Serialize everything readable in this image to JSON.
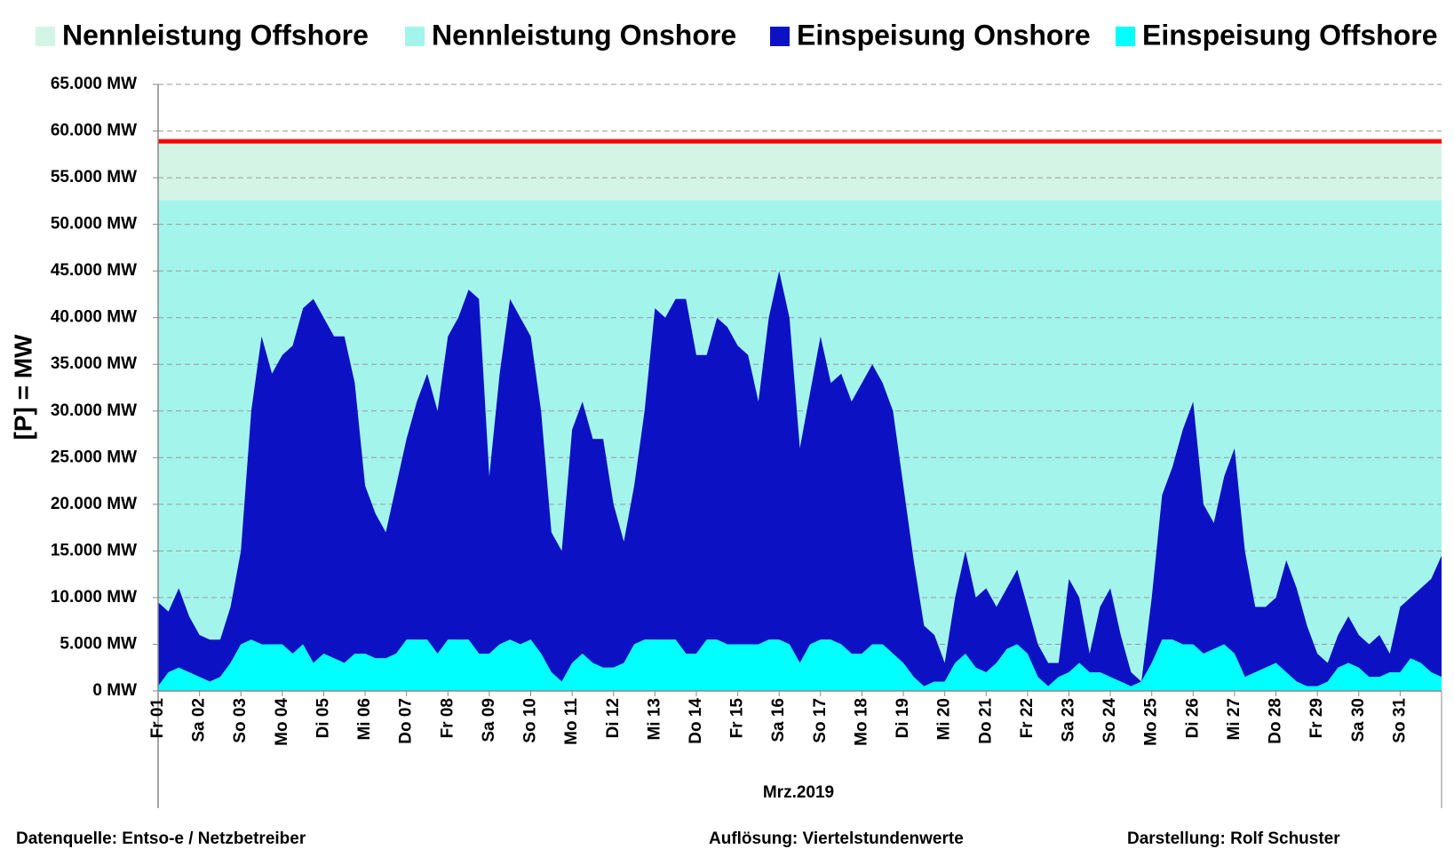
{
  "chart_data": {
    "type": "stacked_area",
    "legend_position": "top",
    "grid": true,
    "x_label": "Mrz.2019",
    "y_label": "[P] = MW",
    "annotations": [
      "Datenquelle:  Entso-e  / Netzbetreiber",
      "Auflösung: Viertelstundenwerte",
      "Darstellung: Rolf Schuster"
    ],
    "capacity_line_color": "#ff0000",
    "capacity": [
      {
        "name": "Nennleistung Offshore",
        "color": "#d4f5e6",
        "value": 6300
      },
      {
        "name": "Nennleistung Onshore",
        "color": "#a3f5ec",
        "value": 52600
      }
    ],
    "xlim": [
      1,
      32
    ],
    "xticks": [
      {
        "value": 1,
        "label": "Fr 01"
      },
      {
        "value": 2,
        "label": "Sa 02"
      },
      {
        "value": 3,
        "label": "So 03"
      },
      {
        "value": 4,
        "label": "Mo 04"
      },
      {
        "value": 5,
        "label": "Di 05"
      },
      {
        "value": 6,
        "label": "Mi 06"
      },
      {
        "value": 7,
        "label": "Do 07"
      },
      {
        "value": 8,
        "label": "Fr 08"
      },
      {
        "value": 9,
        "label": "Sa 09"
      },
      {
        "value": 10,
        "label": "So 10"
      },
      {
        "value": 11,
        "label": "Mo 11"
      },
      {
        "value": 12,
        "label": "Di 12"
      },
      {
        "value": 13,
        "label": "Mi 13"
      },
      {
        "value": 14,
        "label": "Do 14"
      },
      {
        "value": 15,
        "label": "Fr 15"
      },
      {
        "value": 16,
        "label": "Sa 16"
      },
      {
        "value": 17,
        "label": "So 17"
      },
      {
        "value": 18,
        "label": "Mo 18"
      },
      {
        "value": 19,
        "label": "Di 19"
      },
      {
        "value": 20,
        "label": "Mi 20"
      },
      {
        "value": 21,
        "label": "Do 21"
      },
      {
        "value": 22,
        "label": "Fr 22"
      },
      {
        "value": 23,
        "label": "Sa 23"
      },
      {
        "value": 24,
        "label": "So 24"
      },
      {
        "value": 25,
        "label": "Mo 25"
      },
      {
        "value": 26,
        "label": "Di 26"
      },
      {
        "value": 27,
        "label": "Mi 27"
      },
      {
        "value": 28,
        "label": "Do 28"
      },
      {
        "value": 29,
        "label": "Fr 29"
      },
      {
        "value": 30,
        "label": "Sa 30"
      },
      {
        "value": 31,
        "label": "So 31"
      }
    ],
    "ylim": [
      0,
      65000
    ],
    "yticks": [
      {
        "value": 0,
        "label": "0 MW"
      },
      {
        "value": 5000,
        "label": "5.000 MW"
      },
      {
        "value": 10000,
        "label": "10.000 MW"
      },
      {
        "value": 15000,
        "label": "15.000 MW"
      },
      {
        "value": 20000,
        "label": "20.000 MW"
      },
      {
        "value": 25000,
        "label": "25.000 MW"
      },
      {
        "value": 30000,
        "label": "30.000 MW"
      },
      {
        "value": 35000,
        "label": "35.000 MW"
      },
      {
        "value": 40000,
        "label": "40.000 MW"
      },
      {
        "value": 45000,
        "label": "45.000 MW"
      },
      {
        "value": 50000,
        "label": "50.000 MW"
      },
      {
        "value": 55000,
        "label": "55.000 MW"
      },
      {
        "value": 60000,
        "label": "60.000 MW"
      },
      {
        "value": 65000,
        "label": "65.000 MW"
      }
    ],
    "x": [
      1,
      1.25,
      1.5,
      1.75,
      2,
      2.25,
      2.5,
      2.75,
      3,
      3.25,
      3.5,
      3.75,
      4,
      4.25,
      4.5,
      4.75,
      5,
      5.25,
      5.5,
      5.75,
      6,
      6.25,
      6.5,
      6.75,
      7,
      7.25,
      7.5,
      7.75,
      8,
      8.25,
      8.5,
      8.75,
      9,
      9.25,
      9.5,
      9.75,
      10,
      10.25,
      10.5,
      10.75,
      11,
      11.25,
      11.5,
      11.75,
      12,
      12.25,
      12.5,
      12.75,
      13,
      13.25,
      13.5,
      13.75,
      14,
      14.25,
      14.5,
      14.75,
      15,
      15.25,
      15.5,
      15.75,
      16,
      16.25,
      16.5,
      16.75,
      17,
      17.25,
      17.5,
      17.75,
      18,
      18.25,
      18.5,
      18.75,
      19,
      19.25,
      19.5,
      19.75,
      20,
      20.25,
      20.5,
      20.75,
      21,
      21.25,
      21.5,
      21.75,
      22,
      22.25,
      22.5,
      22.75,
      23,
      23.25,
      23.5,
      23.75,
      24,
      24.25,
      24.5,
      24.75,
      25,
      25.25,
      25.5,
      25.75,
      26,
      26.25,
      26.5,
      26.75,
      27,
      27.25,
      27.5,
      27.75,
      28,
      28.25,
      28.5,
      28.75,
      29,
      29.25,
      29.5,
      29.75,
      30,
      30.25,
      30.5,
      30.75,
      31,
      31.25,
      31.5,
      31.75,
      32
    ],
    "series": [
      {
        "name": "Einspeisung Onshore",
        "color": "#0c12c4",
        "values": [
          9000,
          6500,
          8500,
          6000,
          4500,
          4500,
          4000,
          6000,
          10000,
          24500,
          33000,
          29000,
          31000,
          33000,
          36000,
          39000,
          36000,
          34500,
          35000,
          29000,
          18000,
          15500,
          13500,
          18000,
          21500,
          25500,
          28500,
          26000,
          32500,
          34500,
          37500,
          38000,
          19000,
          29000,
          36500,
          35000,
          32500,
          26000,
          15000,
          14000,
          25000,
          27000,
          24000,
          24500,
          17500,
          13000,
          17000,
          24500,
          35500,
          34500,
          36500,
          38000,
          32000,
          30500,
          34500,
          34000,
          32000,
          31000,
          26000,
          34500,
          39500,
          35000,
          23000,
          27000,
          32500,
          27500,
          29000,
          27000,
          29000,
          30000,
          28000,
          26000,
          19000,
          12500,
          6500,
          5000,
          2000,
          7000,
          11000,
          7500,
          9000,
          6000,
          6500,
          8000,
          5000,
          3500,
          2500,
          1500,
          10000,
          7000,
          2000,
          7000,
          9500,
          5000,
          1500,
          0,
          7000,
          15500,
          18500,
          23000,
          26000,
          16000,
          13500,
          18000,
          22000,
          13500,
          7000,
          6500,
          7000,
          12000,
          10000,
          6500,
          3500,
          2000,
          3500,
          5000,
          3500,
          3500,
          4500,
          2000,
          7000,
          6500,
          8000,
          10000,
          13000
        ]
      },
      {
        "name": "Einspeisung Offshore",
        "color": "#00ffff",
        "values": [
          500,
          2000,
          2500,
          2000,
          1500,
          1000,
          1500,
          3000,
          5000,
          5500,
          5000,
          5000,
          5000,
          4000,
          5000,
          3000,
          4000,
          3500,
          3000,
          4000,
          4000,
          3500,
          3500,
          4000,
          5500,
          5500,
          5500,
          4000,
          5500,
          5500,
          5500,
          4000,
          4000,
          5000,
          5500,
          5000,
          5500,
          4000,
          2000,
          1000,
          3000,
          4000,
          3000,
          2500,
          2500,
          3000,
          5000,
          5500,
          5500,
          5500,
          5500,
          4000,
          4000,
          5500,
          5500,
          5000,
          5000,
          5000,
          5000,
          5500,
          5500,
          5000,
          3000,
          5000,
          5500,
          5500,
          5000,
          4000,
          4000,
          5000,
          5000,
          4000,
          3000,
          1500,
          500,
          1000,
          1000,
          3000,
          4000,
          2500,
          2000,
          3000,
          4500,
          5000,
          4000,
          1500,
          500,
          1500,
          2000,
          3000,
          2000,
          2000,
          1500,
          1000,
          500,
          1000,
          3000,
          5500,
          5500,
          5000,
          5000,
          4000,
          4500,
          5000,
          4000,
          1500,
          2000,
          2500,
          3000,
          2000,
          1000,
          500,
          500,
          1000,
          2500,
          3000,
          2500,
          1500,
          1500,
          2000,
          2000,
          3500,
          3000,
          2000,
          1500
        ]
      }
    ]
  }
}
